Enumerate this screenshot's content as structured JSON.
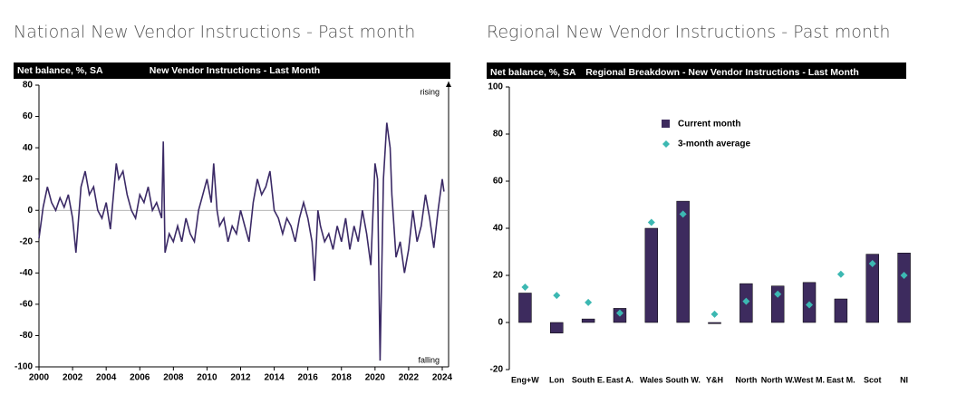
{
  "chart_data": [
    {
      "type": "line",
      "heading": "National New Vendor Instructions - Past month",
      "title": "New Vendor Instructions - Last Month",
      "ylabel": "Net balance, %, SA",
      "annotations": [
        "rising",
        "falling"
      ],
      "color": "#3b2a66",
      "x": [
        2000,
        2000.25,
        2000.5,
        2000.75,
        2001,
        2001.25,
        2001.5,
        2001.75,
        2002,
        2002.2,
        2002.5,
        2002.75,
        2003,
        2003.25,
        2003.5,
        2003.75,
        2004,
        2004.25,
        2004.6,
        2004.75,
        2005,
        2005.25,
        2005.5,
        2005.75,
        2006,
        2006.25,
        2006.5,
        2006.75,
        2007,
        2007.3,
        2007.4,
        2007.5,
        2007.75,
        2008,
        2008.25,
        2008.5,
        2008.75,
        2009,
        2009.25,
        2009.5,
        2009.75,
        2010,
        2010.25,
        2010.4,
        2010.6,
        2010.75,
        2011,
        2011.25,
        2011.5,
        2011.75,
        2012,
        2012.25,
        2012.5,
        2012.75,
        2013,
        2013.25,
        2013.5,
        2013.75,
        2014,
        2014.25,
        2014.5,
        2014.75,
        2015,
        2015.25,
        2015.5,
        2015.75,
        2016,
        2016.25,
        2016.4,
        2016.6,
        2016.75,
        2017,
        2017.25,
        2017.5,
        2017.75,
        2018,
        2018.25,
        2018.5,
        2018.75,
        2019,
        2019.25,
        2019.5,
        2019.75,
        2020,
        2020.15,
        2020.3,
        2020.5,
        2020.7,
        2020.9,
        2021,
        2021.25,
        2021.5,
        2021.75,
        2022,
        2022.25,
        2022.5,
        2022.75,
        2023,
        2023.25,
        2023.5,
        2023.75,
        2024,
        2024.1
      ],
      "values": [
        -18,
        2,
        15,
        5,
        0,
        8,
        2,
        10,
        -5,
        -27,
        15,
        25,
        10,
        15,
        0,
        -5,
        5,
        -12,
        30,
        20,
        25,
        10,
        0,
        -5,
        10,
        5,
        15,
        0,
        5,
        -5,
        44,
        -27,
        -15,
        -20,
        -10,
        -20,
        -5,
        -15,
        -20,
        0,
        10,
        20,
        5,
        30,
        0,
        -10,
        -5,
        -20,
        -10,
        -15,
        0,
        -10,
        -20,
        5,
        20,
        10,
        15,
        25,
        0,
        -5,
        -15,
        -5,
        -10,
        -20,
        -5,
        5,
        -5,
        -20,
        -45,
        0,
        -10,
        -20,
        -15,
        -25,
        -10,
        -20,
        -5,
        -25,
        -10,
        -20,
        0,
        -15,
        -35,
        30,
        20,
        -96,
        20,
        56,
        40,
        10,
        -30,
        -20,
        -40,
        -25,
        0,
        -20,
        -10,
        10,
        -5,
        -24,
        0,
        20,
        12
      ],
      "xlim": [
        2000,
        2024
      ],
      "xticks": [
        2000,
        2002,
        2004,
        2006,
        2008,
        2010,
        2012,
        2014,
        2016,
        2018,
        2020,
        2022,
        2024
      ],
      "ylim": [
        -100,
        80
      ],
      "yticks": [
        -100,
        -80,
        -60,
        -40,
        -20,
        0,
        20,
        40,
        60,
        80
      ]
    },
    {
      "type": "bar",
      "heading": "Regional New Vendor Instructions - Past month",
      "title": "Regional Breakdown - New Vendor Instructions - Last Month",
      "ylabel": "Net balance, %, SA",
      "categories": [
        "Eng+W",
        "Lon",
        "South E.",
        "East A.",
        "Wales",
        "South W.",
        "Y&H",
        "North",
        "North W.",
        "West M.",
        "East M.",
        "Scot",
        "NI"
      ],
      "series": [
        {
          "name": "Current month",
          "kind": "bar",
          "color": "#3d2b5e",
          "values": [
            12.5,
            -4.5,
            1.5,
            6,
            40,
            51.5,
            -0.5,
            16.5,
            15.5,
            17,
            10,
            29,
            29.5
          ]
        },
        {
          "name": "3-month average",
          "kind": "diamond",
          "color": "#3cb8b2",
          "values": [
            15,
            11.5,
            8.5,
            4,
            42.5,
            46,
            3.5,
            9,
            12,
            7.5,
            20.5,
            25,
            20
          ]
        }
      ],
      "ylim": [
        -20,
        100
      ],
      "yticks": [
        -20,
        0,
        20,
        40,
        60,
        80,
        100
      ]
    }
  ]
}
